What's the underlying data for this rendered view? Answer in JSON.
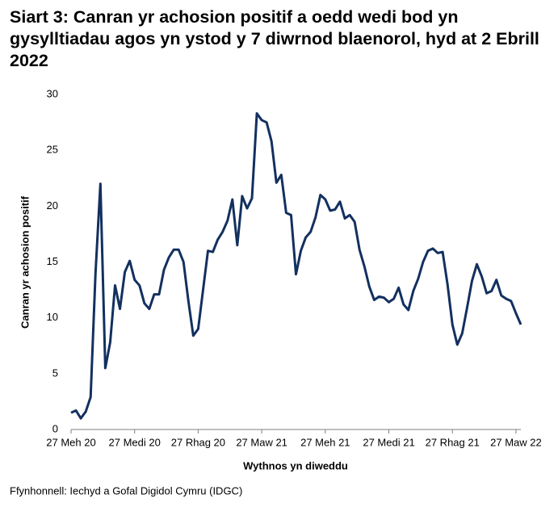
{
  "chart_data": {
    "type": "line",
    "title": "Siart 3: Canran yr achosion positif a oedd wedi bod yn gysylltiadau agos yn ystod y 7 diwrnod blaenorol, hyd at 2 Ebrill 2022",
    "x_label": "Wythnos yn diweddu",
    "y_label": "Canran yr achosion positif",
    "source": "Ffynhonnell: Iechyd a Gofal Digidol Cymru (IDGC)",
    "categories": [
      "27 Meh 20",
      null,
      null,
      null,
      null,
      null,
      null,
      null,
      null,
      null,
      null,
      null,
      null,
      "27 Medi 20",
      null,
      null,
      null,
      null,
      null,
      null,
      null,
      null,
      null,
      null,
      null,
      null,
      "27 Rhag 20",
      null,
      null,
      null,
      null,
      null,
      null,
      null,
      null,
      null,
      null,
      null,
      null,
      "27 Maw 21",
      null,
      null,
      null,
      null,
      null,
      null,
      null,
      null,
      null,
      null,
      null,
      null,
      "27 Meh 21",
      null,
      null,
      null,
      null,
      null,
      null,
      null,
      null,
      null,
      null,
      null,
      null,
      "27 Medi 21",
      null,
      null,
      null,
      null,
      null,
      null,
      null,
      null,
      null,
      null,
      null,
      null,
      "27 Rhag 21",
      null,
      null,
      null,
      null,
      null,
      null,
      null,
      null,
      null,
      null,
      null,
      null,
      "27 Maw 22",
      null
    ],
    "series": [
      {
        "color": "#13305f",
        "values": [
          1.5,
          1.7,
          1.0,
          1.6,
          2.9,
          14,
          22,
          5.5,
          7.8,
          12.9,
          10.8,
          14.1,
          15.1,
          13.4,
          12.9,
          11.3,
          10.8,
          12.1,
          12.1,
          14.3,
          15.4,
          16.1,
          16.1,
          15.0,
          11.5,
          8.4,
          9.0,
          12.5,
          16.0,
          15.9,
          17.0,
          17.7,
          18.7,
          20.6,
          16.5,
          20.9,
          19.8,
          20.7,
          28.3,
          27.7,
          27.5,
          25.8,
          22.1,
          22.8,
          19.4,
          19.2,
          13.9,
          16.0,
          17.2,
          17.7,
          19.0,
          21.0,
          20.6,
          19.6,
          19.7,
          20.4,
          18.9,
          19.2,
          18.6,
          16.1,
          14.6,
          12.8,
          11.6,
          11.9,
          11.8,
          11.4,
          11.7,
          12.7,
          11.2,
          10.7,
          12.4,
          13.5,
          15.0,
          16.0,
          16.2,
          15.8,
          15.9,
          13.0,
          9.4,
          7.6,
          8.6,
          10.9,
          13.3,
          14.8,
          13.7,
          12.2,
          12.4,
          13.4,
          12.0,
          11.7,
          11.5,
          10.4,
          9.4
        ]
      }
    ],
    "ylim": [
      0,
      30
    ],
    "yticks": [
      0,
      5,
      10,
      15,
      20,
      25,
      30
    ]
  }
}
